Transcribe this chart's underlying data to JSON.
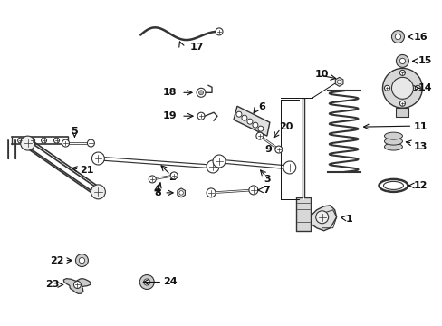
{
  "background_color": "#ffffff",
  "line_color": "#333333",
  "label_color": "#111111",
  "parts_layout": {
    "fig_w": 4.89,
    "fig_h": 3.6,
    "dpi": 100
  }
}
